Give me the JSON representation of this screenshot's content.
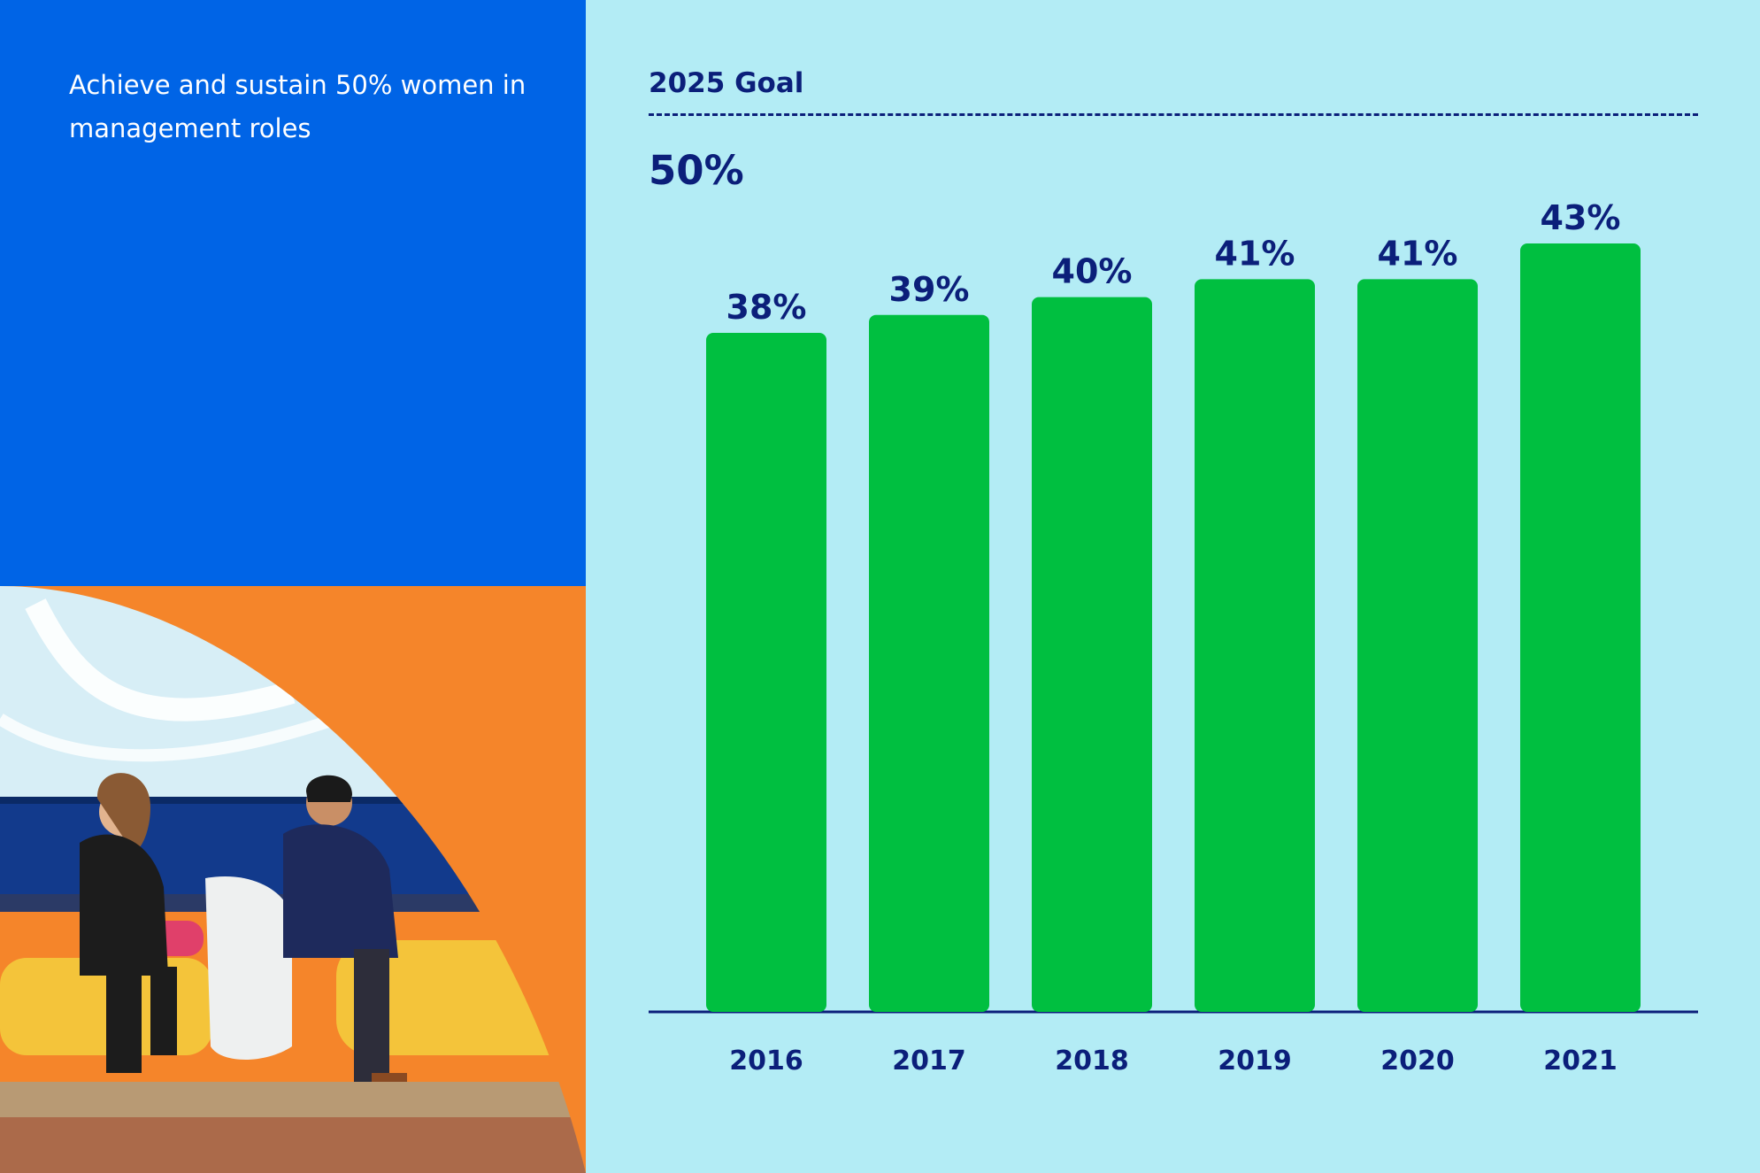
{
  "headline": "Achieve and sustain 50% women in management roles",
  "goal": {
    "label": "2025 Goal",
    "value_text": "50%"
  },
  "colors": {
    "left_panel": "#0064e6",
    "background": "#b3ecf5",
    "bars": "#00bf40",
    "text": "#0b1f7a",
    "photo_backdrop": "#f5852a"
  },
  "photo": {
    "description_icon": "photo-two-people-talking"
  },
  "chart_data": {
    "type": "bar",
    "categories": [
      "2016",
      "2017",
      "2018",
      "2019",
      "2020",
      "2021"
    ],
    "values": [
      38,
      39,
      40,
      41,
      41,
      43
    ],
    "value_labels": [
      "38%",
      "39%",
      "40%",
      "41%",
      "41%",
      "43%"
    ],
    "title": "",
    "xlabel": "",
    "ylabel": "",
    "ylim": [
      0,
      50
    ],
    "reference_line": {
      "value": 50,
      "style": "dashed"
    },
    "grid": false,
    "legend": "none"
  }
}
